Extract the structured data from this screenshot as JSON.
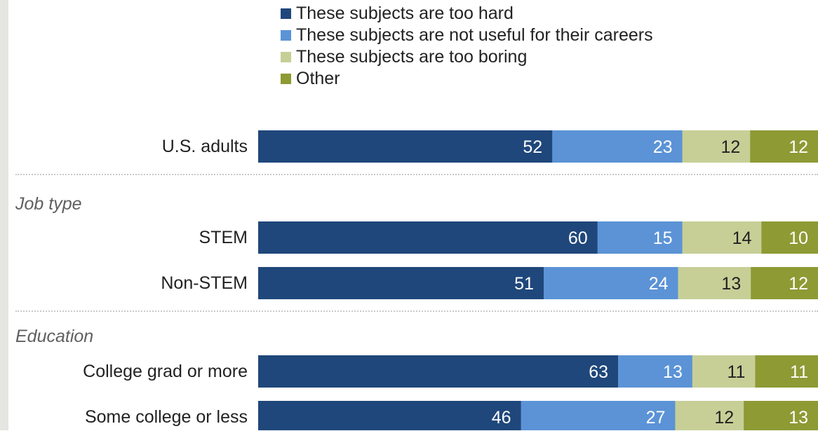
{
  "colors": {
    "hard": "#1f477b",
    "not_useful": "#5b93d6",
    "boring": "#c7cf97",
    "other": "#8e9a34",
    "label_light": "#ffffff",
    "label_dark": "#222222"
  },
  "legend": [
    {
      "label": "These subjects are too hard",
      "color": "#1f477b"
    },
    {
      "label": "These subjects are not useful for their careers",
      "color": "#5b93d6"
    },
    {
      "label": "These subjects are too boring",
      "color": "#c7cf97"
    },
    {
      "label": "Other",
      "color": "#8e9a34"
    }
  ],
  "groups": {
    "job_type": "Job type",
    "education": "Education"
  },
  "chart_data": {
    "type": "bar",
    "orientation": "horizontal",
    "stacked": true,
    "categories": [
      "U.S. adults",
      "STEM",
      "Non-STEM",
      "College grad or more",
      "Some college or less"
    ],
    "series": [
      {
        "name": "These subjects are too hard",
        "values": [
          52,
          60,
          51,
          63,
          46
        ]
      },
      {
        "name": "These subjects are not useful for their careers",
        "values": [
          23,
          15,
          24,
          13,
          27
        ]
      },
      {
        "name": "These subjects are too boring",
        "values": [
          12,
          14,
          13,
          11,
          12
        ]
      },
      {
        "name": "Other",
        "values": [
          12,
          10,
          12,
          11,
          13
        ]
      }
    ],
    "legend_position": "top"
  }
}
